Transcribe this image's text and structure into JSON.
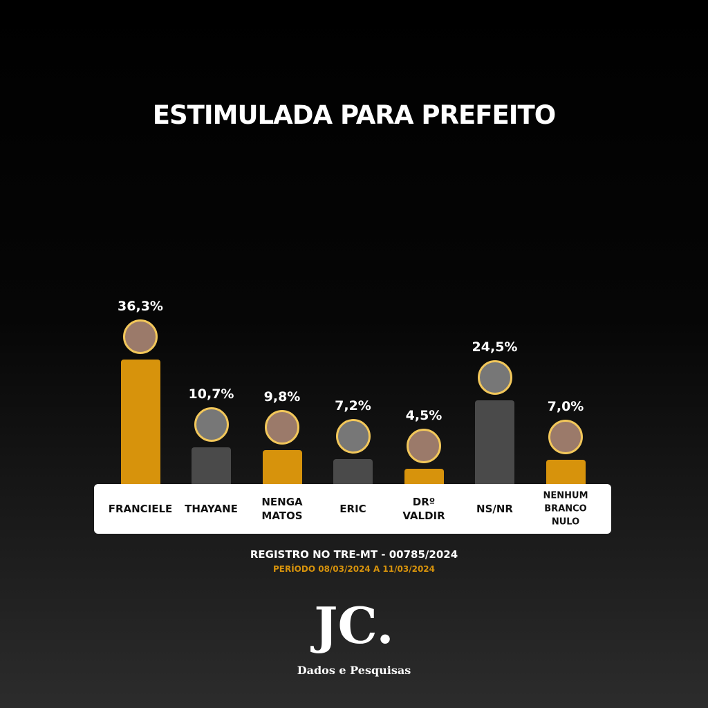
{
  "chart_data": {
    "type": "bar",
    "title": "ESTIMULADA PARA PREFEITO",
    "categories": [
      "FRANCIELE",
      "THAYANE",
      "NENGA MATOS",
      "ERIC",
      "DRº VALDIR",
      "NS/NR",
      "NENHUM BRANCO NULO"
    ],
    "values": [
      36.3,
      10.7,
      9.8,
      7.2,
      4.5,
      24.5,
      7.0
    ],
    "value_labels": [
      "36,3%",
      "10,7%",
      "9,8%",
      "7,2%",
      "4,5%",
      "24,5%",
      "7,0%"
    ],
    "colors": [
      "#d7930c",
      "#4a4a4a",
      "#d7930c",
      "#4a4a4a",
      "#d7930c",
      "#4a4a4a",
      "#d7930c"
    ]
  },
  "footer": {
    "registry": "REGISTRO NO TRE-MT - 00785/2024",
    "period": "PERÍODO 08/03/2024 A 11/03/2024",
    "logo": "JC.",
    "tagline": "Dados e Pesquisas"
  }
}
